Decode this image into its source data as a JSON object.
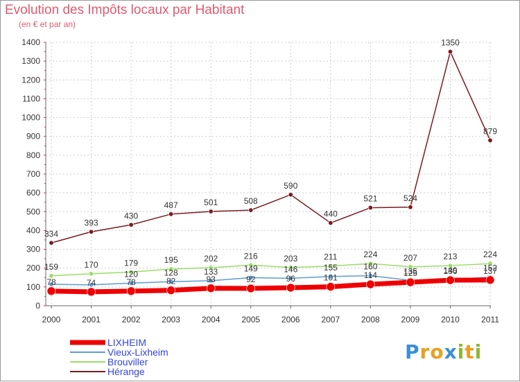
{
  "title": "Evolution des Impôts locaux par Habitant",
  "subtitle": "(en € et par an)",
  "brand": {
    "letters": [
      "P",
      "r",
      "o",
      "x",
      "i",
      "t",
      "i"
    ],
    "colors": [
      "#3a8fd6",
      "#e8a020",
      "#e8a020",
      "#3a8fd6",
      "#8ab832",
      "#e8a020",
      "#8ab832"
    ]
  },
  "chart_data": {
    "type": "line",
    "title": "Evolution des Impôts locaux par Habitant",
    "ylabel": "(en € et par an)",
    "xlabel": "",
    "x": [
      "2000",
      "2001",
      "2002",
      "2003",
      "2004",
      "2005",
      "2006",
      "2007",
      "2008",
      "2009",
      "2010",
      "2011"
    ],
    "ylim": [
      0,
      1400
    ],
    "yticks": [
      "0",
      "100",
      "200",
      "300",
      "400",
      "500",
      "600",
      "700",
      "800",
      "900",
      "1000",
      "1100",
      "1200",
      "1300",
      "1400"
    ],
    "series": [
      {
        "name": "Hérange",
        "color": "#7a1a20",
        "values": [
          334,
          393,
          430,
          487,
          501,
          508,
          590,
          440,
          521,
          524,
          1350,
          879
        ],
        "labels": [
          "334",
          "393",
          "430",
          "487",
          "501",
          "508",
          "590",
          "440",
          "521",
          "524",
          "1350",
          "879"
        ]
      },
      {
        "name": "Brouviller",
        "color": "#99dd66",
        "values": [
          159,
          170,
          179,
          195,
          202,
          216,
          203,
          211,
          224,
          207,
          213,
          224
        ],
        "labels": [
          "159",
          "170",
          "179",
          "195",
          "202",
          "216",
          "203",
          "211",
          "224",
          "207",
          "213",
          "224"
        ]
      },
      {
        "name": "Vieux-Lixheim",
        "color": "#5b9bd5",
        "values": [
          114,
          111,
          120,
          128,
          133,
          149,
          146,
          155,
          160,
          135,
          140,
          152
        ],
        "labels": [
          "",
          "",
          "120",
          "128",
          "133",
          "149",
          "146",
          "155",
          "160",
          "135",
          "140",
          "152"
        ]
      },
      {
        "name": "LIXHEIM",
        "color": "#ee0000",
        "values": [
          78,
          74,
          78,
          82,
          93,
          92,
          96,
          101,
          114,
          125,
          136,
          137
        ],
        "labels": [
          "78",
          "74",
          "78",
          "82",
          "93",
          "92",
          "96",
          "101",
          "114",
          "125",
          "136",
          "137"
        ]
      }
    ],
    "legend": [
      {
        "name": "LIXHEIM",
        "color": "#ee0000"
      },
      {
        "name": "Vieux-Lixheim",
        "color": "#5b9bd5"
      },
      {
        "name": "Brouviller",
        "color": "#99dd66"
      },
      {
        "name": "Hérange",
        "color": "#7a1a20"
      }
    ]
  }
}
